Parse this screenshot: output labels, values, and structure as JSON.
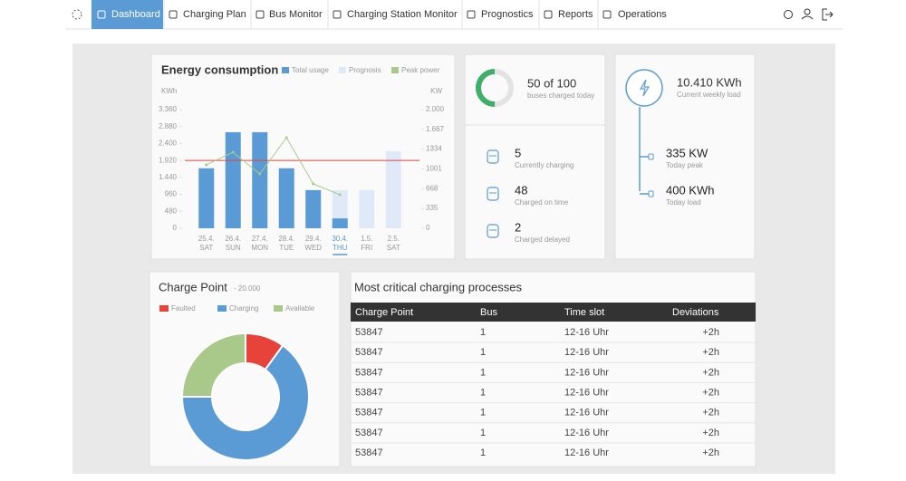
{
  "nav": {
    "items": [
      "Dashboard",
      "Charging Plan",
      "Bus Monitor",
      "Charging Station Monitor",
      "Prognostics",
      "Reports",
      "Operations"
    ],
    "active": 0
  },
  "energy_chart": {
    "type": "bar",
    "title": "Energy consumption",
    "y_label": "KWh",
    "y2_label": "KW",
    "dates": [
      "25.4.",
      "26.4.",
      "27.4.",
      "28.4.",
      "29.4.",
      "30.4.",
      "1.5.",
      "2.5."
    ],
    "categories": [
      "SAT",
      "SUN",
      "MON",
      "TUE",
      "WED",
      "THU",
      "FRI",
      "SAT"
    ],
    "highlight": 5,
    "series": [
      {
        "name": "Total usage",
        "color": "#5b9bd5",
        "values": [
          1700,
          2720,
          2720,
          1700,
          1080,
          280,
          null,
          null
        ]
      },
      {
        "name": "Prognosis",
        "color": "#dfe9f7",
        "values": [
          null,
          null,
          null,
          null,
          null,
          1080,
          1080,
          2180
        ]
      },
      {
        "name": "Peak power",
        "color": "#a9c98a",
        "type": "line",
        "axis": "y2",
        "values": [
          1069,
          1282,
          916,
          1527,
          748,
          565,
          null,
          null
        ]
      }
    ],
    "ylim": [
      0,
      3360
    ],
    "yticks": [
      0,
      480,
      960,
      {
        "value": 1440,
        "label": "1.440"
      },
      {
        "value": 1920,
        "label": "1.920"
      },
      {
        "value": 2400,
        "label": "2.400"
      },
      {
        "value": 2880,
        "label": "2.880"
      },
      {
        "value": 3360,
        "label": "3.360"
      }
    ],
    "y2lim": [
      0,
      2000
    ],
    "y2ticks": [
      0,
      335,
      668,
      1001,
      1334,
      {
        "value": 1667,
        "label": "1.667"
      },
      {
        "value": 2000,
        "label": "2.000"
      }
    ],
    "reference_line": {
      "value": 1920,
      "color": "#e0453a"
    }
  },
  "buses": {
    "headline": "50 of 100",
    "subtitle": "buses charged today",
    "charged": 50,
    "total": 100,
    "stats": [
      {
        "value": 5,
        "label": "Currently charging"
      },
      {
        "value": 48,
        "label": "Charged on time"
      },
      {
        "value": 2,
        "label": "Charged delayed"
      }
    ]
  },
  "load": {
    "headline": "10.410 KWh",
    "subtitle": "Current weekly load",
    "items": [
      {
        "value": "335 KW",
        "label": "Today peak"
      },
      {
        "value": "400 KWh",
        "label": "Today load"
      }
    ]
  },
  "charge_point": {
    "type": "pie",
    "title": "Charge Point",
    "subtitle": "- 20.000",
    "categories": [
      "Faulted",
      "Charging",
      "Available"
    ],
    "colors": [
      "#e8433a",
      "#5b9bd5",
      "#a9c98a"
    ],
    "values": [
      10,
      65,
      25
    ]
  },
  "table": {
    "title": "Most critical charging processes",
    "columns": [
      "Charge Point",
      "Bus",
      "Time slot",
      "Deviations"
    ],
    "rows": [
      [
        "53847",
        "1",
        "12-16 Uhr",
        "+2h"
      ],
      [
        "53847",
        "1",
        "12-16 Uhr",
        "+2h"
      ],
      [
        "53847",
        "1",
        "12-16 Uhr",
        "+2h"
      ],
      [
        "53847",
        "1",
        "12-16 Uhr",
        "+2h"
      ],
      [
        "53847",
        "1",
        "12-16 Uhr",
        "+2h"
      ],
      [
        "53847",
        "1",
        "12-16 Uhr",
        "+2h"
      ],
      [
        "53847",
        "1",
        "12-16 Uhr",
        "+2h"
      ]
    ]
  }
}
